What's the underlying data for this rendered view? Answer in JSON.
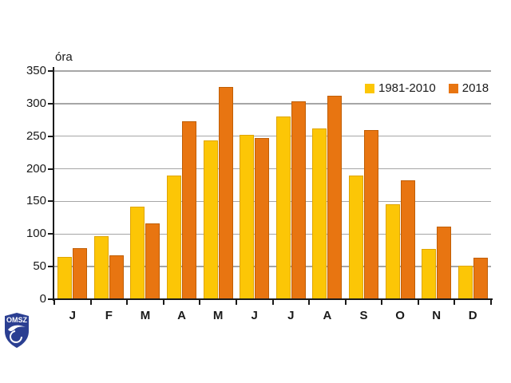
{
  "logo": {
    "text": "OMSZ",
    "color": "#2B3F92"
  },
  "chart_data": {
    "type": "bar",
    "title": "",
    "xlabel": "",
    "ylabel": "óra",
    "categories": [
      "J",
      "F",
      "M",
      "A",
      "M",
      "J",
      "J",
      "A",
      "S",
      "O",
      "N",
      "D"
    ],
    "series": [
      {
        "name": "1981-2010",
        "color": "#FCC606",
        "edge_color": "#DFA500",
        "values": [
          65,
          97,
          142,
          190,
          243,
          252,
          280,
          262,
          190,
          146,
          77,
          51
        ]
      },
      {
        "name": "2018",
        "color": "#E87511",
        "edge_color": "#C05E05",
        "values": [
          78,
          67,
          116,
          273,
          325,
          247,
          303,
          312,
          260,
          182,
          111,
          64
        ]
      }
    ],
    "ylim": [
      0,
      350
    ],
    "ytick_step": 50,
    "grid": true,
    "legend_position": "top-right",
    "axis_color": "#1A1A1A",
    "gridline_color": "#A6A6A6"
  }
}
